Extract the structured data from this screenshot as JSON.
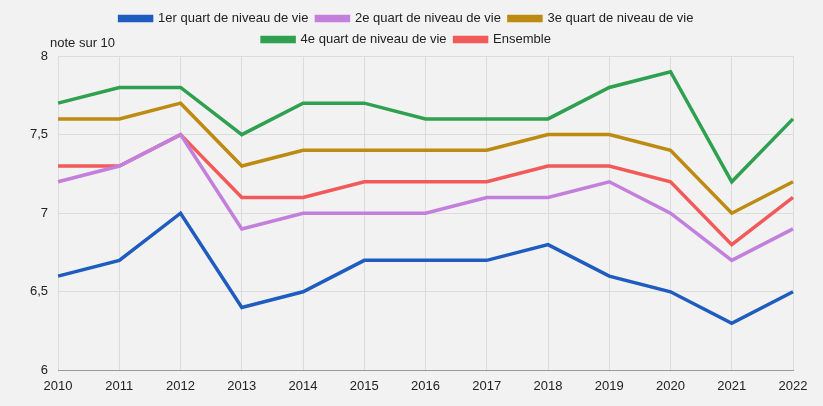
{
  "chart_data": {
    "type": "line",
    "ylabel": "note sur 10",
    "categories": [
      "2010",
      "2011",
      "2012",
      "2013",
      "2014",
      "2015",
      "2016",
      "2017",
      "2018",
      "2019",
      "2020",
      "2021",
      "2022"
    ],
    "series": [
      {
        "name": "1er quart de niveau de vie",
        "color": "#1f5cbf",
        "values": [
          6.6,
          6.7,
          7.0,
          6.4,
          6.5,
          6.7,
          6.7,
          6.7,
          6.8,
          6.6,
          6.5,
          6.3,
          6.5
        ]
      },
      {
        "name": "2e quart de niveau de vie",
        "color": "#c27fdc",
        "values": [
          7.2,
          7.3,
          7.5,
          6.9,
          7.0,
          7.0,
          7.0,
          7.1,
          7.1,
          7.2,
          7.0,
          6.7,
          6.9
        ]
      },
      {
        "name": "3e quart de niveau de vie",
        "color": "#bd8a12",
        "values": [
          7.6,
          7.6,
          7.7,
          7.3,
          7.4,
          7.4,
          7.4,
          7.4,
          7.5,
          7.5,
          7.4,
          7.0,
          7.2
        ]
      },
      {
        "name": "4e quart de niveau de vie",
        "color": "#2ea04f",
        "values": [
          7.7,
          7.8,
          7.8,
          7.5,
          7.7,
          7.7,
          7.6,
          7.6,
          7.6,
          7.8,
          7.9,
          7.2,
          7.6
        ]
      },
      {
        "name": "Ensemble",
        "color": "#f25a5a",
        "values": [
          7.3,
          7.3,
          7.5,
          7.1,
          7.1,
          7.2,
          7.2,
          7.2,
          7.3,
          7.3,
          7.2,
          6.8,
          7.1
        ]
      }
    ],
    "ylim": [
      6,
      8
    ],
    "yticks": [
      6,
      {
        "value": 6.5,
        "label": "6,5"
      },
      7,
      {
        "value": 7.5,
        "label": "7,5"
      },
      8
    ],
    "grid": true,
    "legend": "top"
  }
}
